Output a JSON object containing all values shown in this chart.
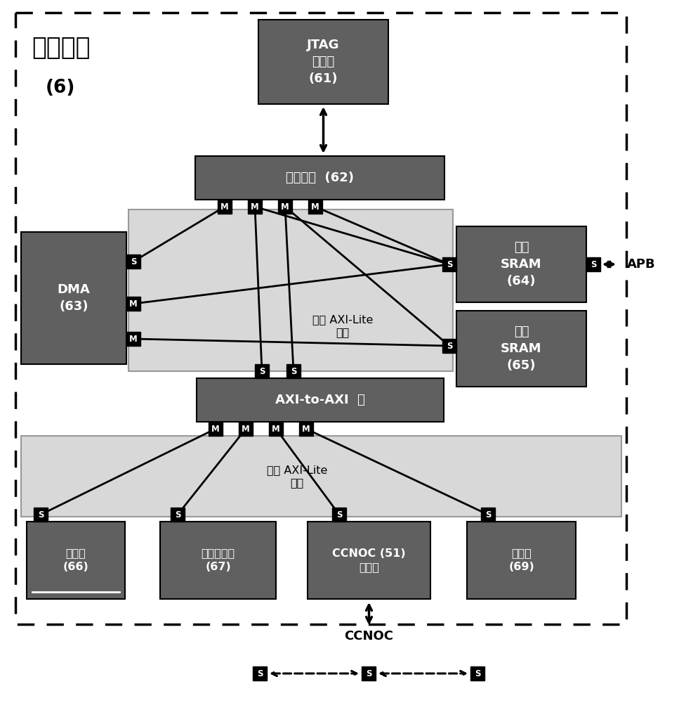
{
  "fig_width": 9.67,
  "fig_height": 10.0,
  "bg_color": "#ffffff",
  "dark_gray": "#606060",
  "light_gray": "#cccccc",
  "black": "#000000",
  "white": "#ffffff",
  "title_text": "控制中心",
  "title_num": "(6)",
  "jtag_label": "JTAG\n控制器\n(61)",
  "mcu_label": "微控制器  (62)",
  "dma_label": "DMA\n(63)",
  "isram_label": "指令\nSRAM\n(64)",
  "dsram_label": "数据\nSRAM\n(65)",
  "monitor_label": "监控器\n(66)",
  "intr_label": "中断控制器\n(67)",
  "ccnoc_label": "CCNOC (51)\n主设备",
  "timer_label": "计时器\n(69)",
  "bridge_label": "AXI-to-AXI  桥",
  "main_interconnect": "主要 AXI-Lite\n互连",
  "aux_interconnect": "辅助 AXI-Lite\n互连",
  "apb_label": "APB",
  "ccnoc_bottom": "CCNOC"
}
